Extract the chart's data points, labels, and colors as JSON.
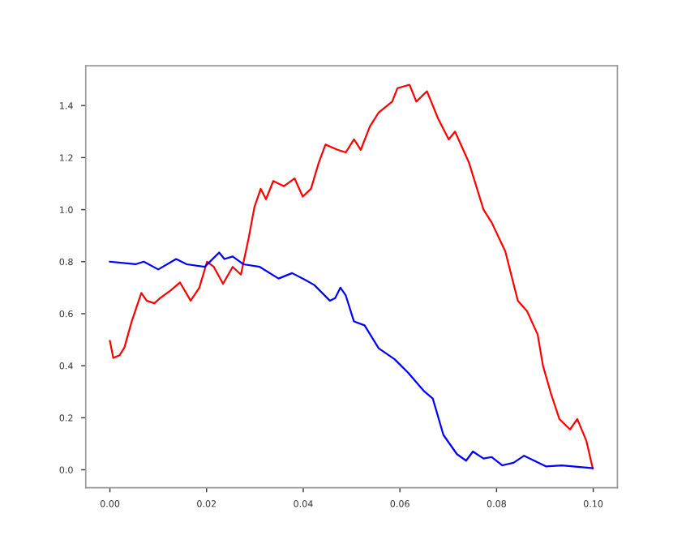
{
  "chart_data": {
    "type": "line",
    "xlim": [
      -0.005,
      0.105
    ],
    "ylim": [
      -0.069,
      1.553
    ],
    "xticks": [
      {
        "value": 0,
        "label": "0.00"
      },
      {
        "value": 0.02,
        "label": "0.02"
      },
      {
        "value": 0.04,
        "label": "0.04"
      },
      {
        "value": 0.06,
        "label": "0.06"
      },
      {
        "value": 0.08,
        "label": "0.08"
      },
      {
        "value": 0.1,
        "label": "0.10"
      }
    ],
    "yticks": [
      {
        "value": 0,
        "label": "0.0"
      },
      {
        "value": 0.2,
        "label": "0.2"
      },
      {
        "value": 0.4,
        "label": "0.4"
      },
      {
        "value": 0.6,
        "label": "0.6"
      },
      {
        "value": 0.8,
        "label": "0.8"
      },
      {
        "value": 1.0,
        "label": "1.0"
      },
      {
        "value": 1.2,
        "label": "1.2"
      },
      {
        "value": 1.4,
        "label": "1.4"
      }
    ],
    "grid": false,
    "legend": false,
    "series": [
      {
        "color": "#ff0000",
        "x": [
          0,
          0.0007,
          0.002,
          0.003,
          0.0045,
          0.0065,
          0.0076,
          0.0092,
          0.0104,
          0.0126,
          0.0145,
          0.0167,
          0.0185,
          0.0201,
          0.0215,
          0.0234,
          0.0254,
          0.0271,
          0.0287,
          0.0299,
          0.0312,
          0.0323,
          0.0338,
          0.036,
          0.0382,
          0.0399,
          0.0416,
          0.0432,
          0.0446,
          0.0471,
          0.0488,
          0.0505,
          0.0519,
          0.0538,
          0.0556,
          0.0584,
          0.0595,
          0.062,
          0.0634,
          0.0656,
          0.0679,
          0.0701,
          0.0714,
          0.0743,
          0.0773,
          0.079,
          0.0818,
          0.0844,
          0.0863,
          0.0885,
          0.0896,
          0.0913,
          0.093,
          0.0952,
          0.0967,
          0.0986,
          0.0999
        ],
        "values": [
          0.495,
          0.43,
          0.44,
          0.47,
          0.57,
          0.68,
          0.65,
          0.64,
          0.66,
          0.69,
          0.72,
          0.65,
          0.7,
          0.8,
          0.78,
          0.715,
          0.78,
          0.75,
          0.89,
          1.01,
          1.08,
          1.04,
          1.11,
          1.09,
          1.12,
          1.05,
          1.08,
          1.18,
          1.25,
          1.23,
          1.22,
          1.27,
          1.23,
          1.32,
          1.373,
          1.415,
          1.467,
          1.48,
          1.415,
          1.455,
          1.35,
          1.27,
          1.3,
          1.18,
          1.0,
          0.95,
          0.84,
          0.65,
          0.61,
          0.52,
          0.4,
          0.29,
          0.195,
          0.155,
          0.195,
          0.11,
          0.005
        ]
      },
      {
        "color": "#0000ff",
        "x": [
          0,
          0.0053,
          0.007,
          0.01,
          0.0137,
          0.0159,
          0.0196,
          0.0226,
          0.0237,
          0.0254,
          0.0276,
          0.031,
          0.0349,
          0.0377,
          0.0404,
          0.0423,
          0.0455,
          0.0466,
          0.0477,
          0.0488,
          0.0505,
          0.0527,
          0.0556,
          0.0589,
          0.0617,
          0.0651,
          0.0668,
          0.069,
          0.0718,
          0.0737,
          0.0751,
          0.0773,
          0.079,
          0.0812,
          0.0835,
          0.0857,
          0.0902,
          0.0935,
          0.0999
        ],
        "values": [
          0.8,
          0.79,
          0.8,
          0.77,
          0.81,
          0.79,
          0.78,
          0.835,
          0.81,
          0.82,
          0.79,
          0.78,
          0.735,
          0.756,
          0.73,
          0.71,
          0.65,
          0.66,
          0.7,
          0.67,
          0.57,
          0.555,
          0.467,
          0.425,
          0.373,
          0.3,
          0.274,
          0.134,
          0.06,
          0.035,
          0.07,
          0.043,
          0.049,
          0.017,
          0.027,
          0.054,
          0.013,
          0.017,
          0.006
        ]
      }
    ]
  }
}
